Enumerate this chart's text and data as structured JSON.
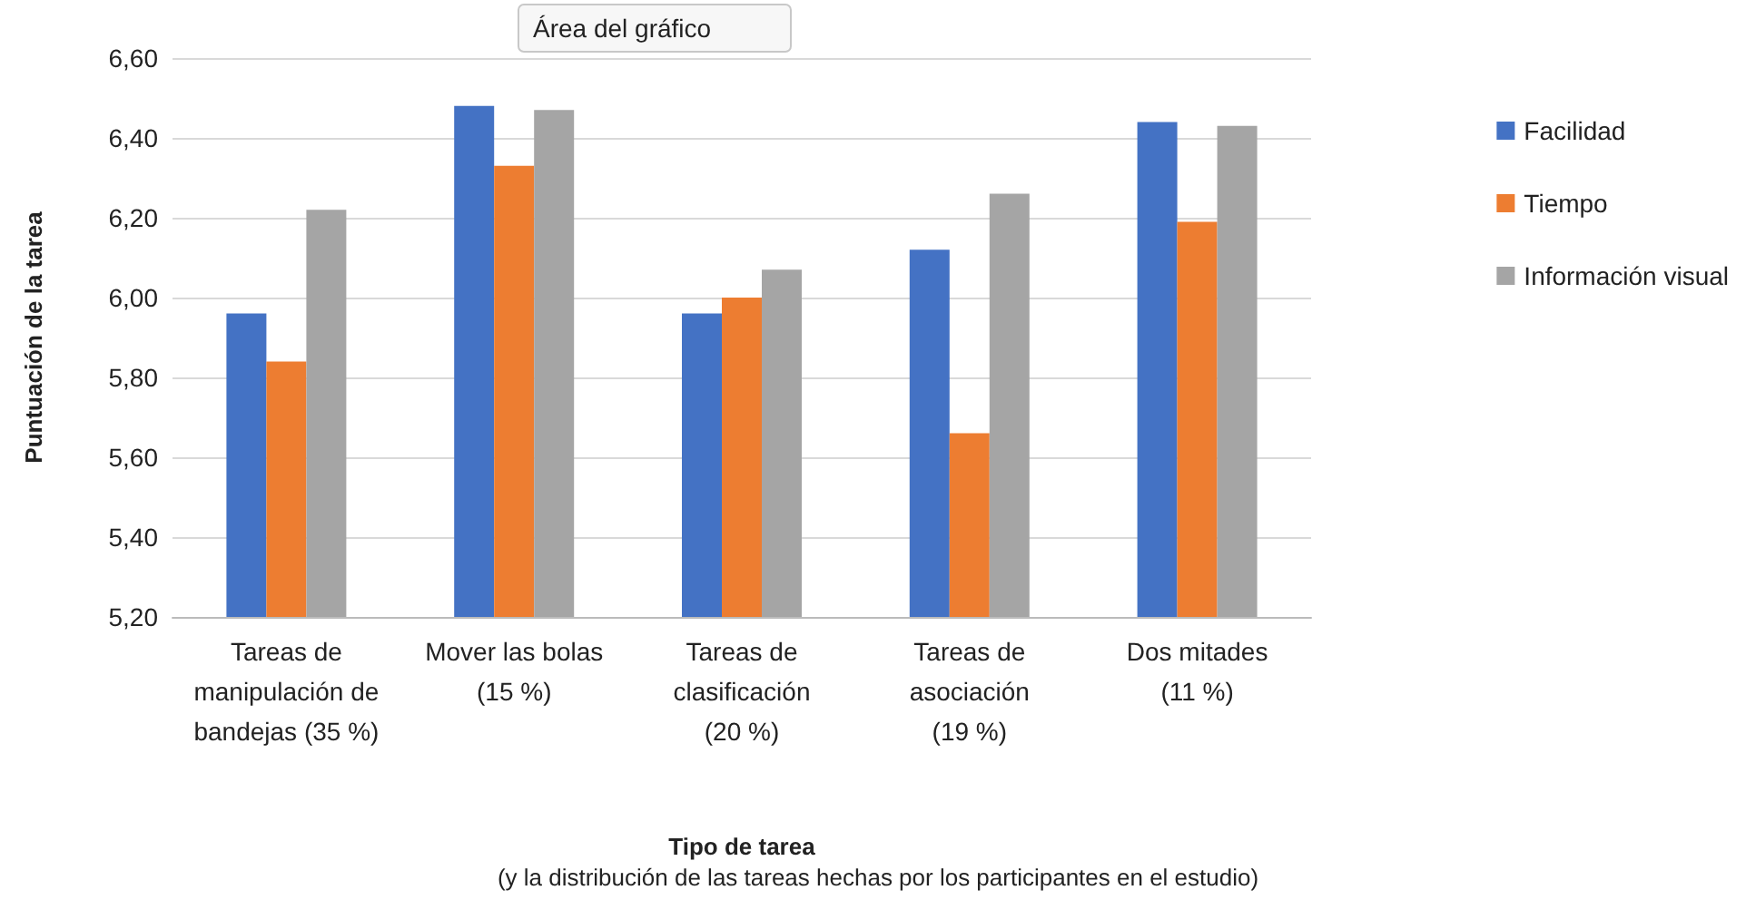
{
  "chart_data": {
    "type": "bar",
    "categories": [
      "Tareas de\nmanipulación de\nbandejas (35 %)",
      "Mover las bolas\n(15 %)",
      "Tareas de\nclasificación\n(20 %)",
      "Tareas de\nasociación\n(19 %)",
      "Dos mitades\n(11 %)"
    ],
    "series": [
      {
        "name": "Facilidad",
        "color": "#4472c4",
        "values": [
          5.96,
          6.48,
          5.96,
          6.12,
          6.44
        ]
      },
      {
        "name": "Tiempo",
        "color": "#ed7d31",
        "values": [
          5.84,
          6.33,
          6.0,
          5.66,
          6.19
        ]
      },
      {
        "name": "Información visual",
        "color": "#a5a5a5",
        "values": [
          6.22,
          6.47,
          6.07,
          6.26,
          6.43
        ]
      }
    ],
    "ylim": [
      5.2,
      6.6
    ],
    "yticks": [
      {
        "value": 5.2,
        "label": "5,20"
      },
      {
        "value": 5.4,
        "label": "5,40"
      },
      {
        "value": 5.6,
        "label": "5,60"
      },
      {
        "value": 5.8,
        "label": "5,80"
      },
      {
        "value": 6.0,
        "label": "6,00"
      },
      {
        "value": 6.2,
        "label": "6,20"
      },
      {
        "value": 6.4,
        "label": "6,40"
      },
      {
        "value": 6.6,
        "label": "6,60"
      }
    ],
    "ylabel": "Puntuación de la tarea",
    "xlabel": "Tipo de tarea",
    "annotations": [
      "Área del gráfico",
      "(y la distribución de las tareas hechas por los participantes en el estudio)"
    ],
    "grid": "y",
    "legend": "right"
  }
}
